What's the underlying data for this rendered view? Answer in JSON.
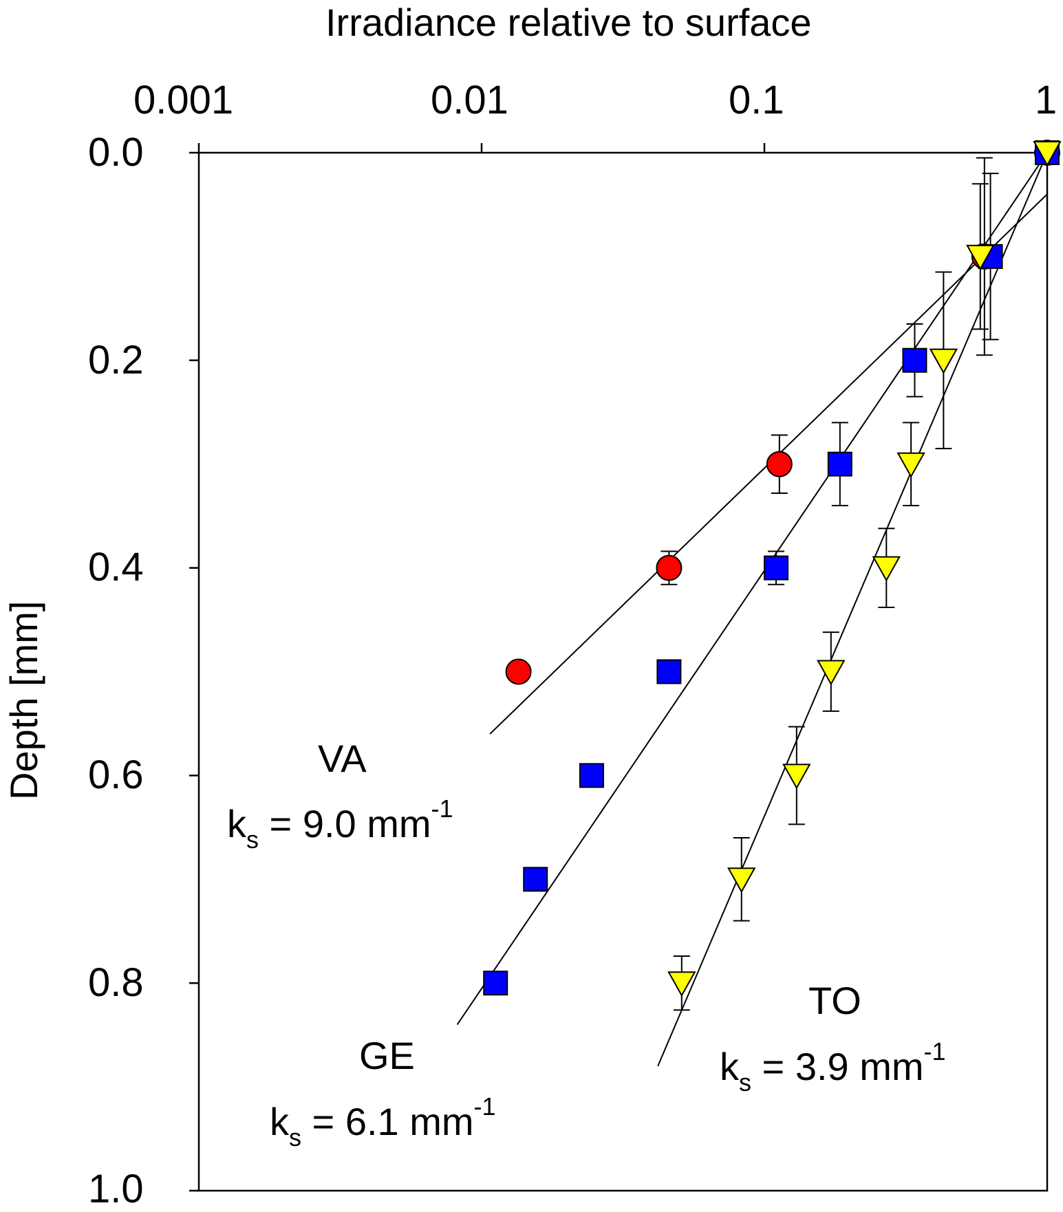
{
  "chart_data": {
    "type": "scatter",
    "title": "Irradiance relative to surface",
    "xlabel": "Irradiance relative to surface",
    "ylabel": "Depth [mm]",
    "xscale": "log",
    "xlim": [
      0.001,
      1
    ],
    "ylim": [
      0.0,
      1.0
    ],
    "y_inverted": true,
    "x_axis_position": "top",
    "x_tick_labels": [
      "0.001",
      "0.01",
      "0.1",
      "1"
    ],
    "x_ticks": [
      0.001,
      0.01,
      0.1,
      1
    ],
    "y_tick_labels": [
      "0.0",
      "0.2",
      "0.4",
      "0.6",
      "0.8",
      "1.0"
    ],
    "y_ticks": [
      0.0,
      0.2,
      0.4,
      0.6,
      0.8,
      1.0
    ],
    "series": [
      {
        "name": "VA",
        "marker": "circle",
        "color": "#ff0000",
        "ks_prefix": "k",
        "ks_subscript": "s",
        "ks_value": " = 9.0 mm",
        "ks_superscript": "-1",
        "points": [
          {
            "x": 1.0,
            "y": 0.0
          },
          {
            "x": 0.6,
            "y": 0.1,
            "err": 0.095
          },
          {
            "x": 0.113,
            "y": 0.3,
            "err": 0.028
          },
          {
            "x": 0.046,
            "y": 0.4,
            "err": 0.016
          },
          {
            "x": 0.0135,
            "y": 0.5
          }
        ],
        "fit": {
          "x": [
            1.0,
            0.0107
          ],
          "y": [
            0.04,
            0.56
          ]
        }
      },
      {
        "name": "GE",
        "marker": "square",
        "color": "#0000ff",
        "ks_prefix": "k",
        "ks_subscript": "s",
        "ks_value": " = 6.1 mm",
        "ks_superscript": "-1",
        "points": [
          {
            "x": 1.0,
            "y": 0.0
          },
          {
            "x": 0.63,
            "y": 0.1,
            "err": 0.08
          },
          {
            "x": 0.34,
            "y": 0.2,
            "err": 0.035
          },
          {
            "x": 0.185,
            "y": 0.3,
            "err": 0.04
          },
          {
            "x": 0.11,
            "y": 0.4,
            "err": 0.016
          },
          {
            "x": 0.046,
            "y": 0.5
          },
          {
            "x": 0.0245,
            "y": 0.6
          },
          {
            "x": 0.0155,
            "y": 0.7
          },
          {
            "x": 0.0112,
            "y": 0.8
          }
        ],
        "fit": {
          "x": [
            1.0,
            0.0082
          ],
          "y": [
            0.0,
            0.84
          ]
        }
      },
      {
        "name": "TO",
        "marker": "triangle-down",
        "color": "#ffff00",
        "ks_prefix": "k",
        "ks_subscript": "s",
        "ks_value": " = 3.9 mm",
        "ks_superscript": "-1",
        "points": [
          {
            "x": 1.0,
            "y": 0.0
          },
          {
            "x": 0.58,
            "y": 0.1,
            "err": 0.07
          },
          {
            "x": 0.43,
            "y": 0.2,
            "err": 0.085
          },
          {
            "x": 0.33,
            "y": 0.3,
            "err": 0.04
          },
          {
            "x": 0.27,
            "y": 0.4,
            "err": 0.038
          },
          {
            "x": 0.172,
            "y": 0.5,
            "err": 0.038
          },
          {
            "x": 0.13,
            "y": 0.6,
            "err": 0.047
          },
          {
            "x": 0.083,
            "y": 0.7,
            "err": 0.04
          },
          {
            "x": 0.051,
            "y": 0.8,
            "err": 0.026
          }
        ],
        "fit": {
          "x": [
            1.0,
            0.042
          ],
          "y": [
            0.0,
            0.88
          ]
        }
      }
    ]
  }
}
